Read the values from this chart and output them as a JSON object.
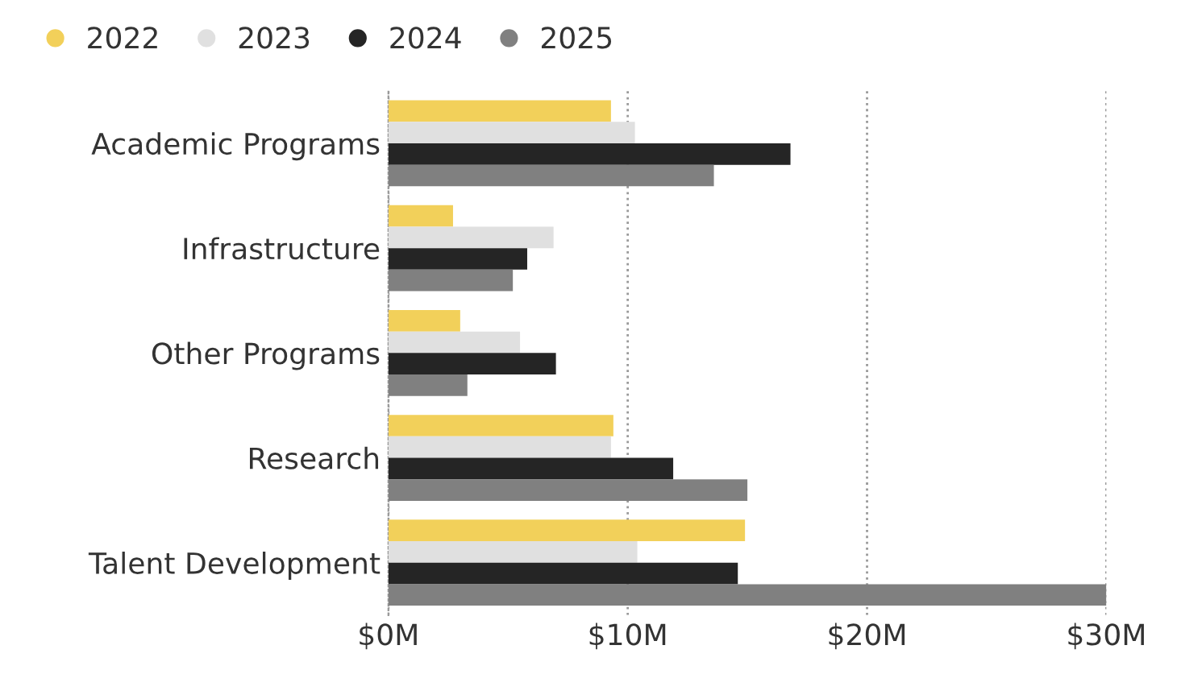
{
  "chart_data": {
    "type": "bar",
    "orientation": "horizontal",
    "categories": [
      "Academic Programs",
      "Infrastructure",
      "Other Programs",
      "Research",
      "Talent Development"
    ],
    "series": [
      {
        "name": "2022",
        "color": "#f2d05a",
        "values": [
          9.3,
          2.7,
          3.0,
          9.4,
          14.9
        ]
      },
      {
        "name": "2023",
        "color": "#e0e0e0",
        "values": [
          10.3,
          6.9,
          5.5,
          9.3,
          10.4
        ]
      },
      {
        "name": "2024",
        "color": "#252525",
        "values": [
          16.8,
          5.8,
          7.0,
          11.9,
          14.6
        ]
      },
      {
        "name": "2025",
        "color": "#808080",
        "values": [
          13.6,
          5.2,
          3.3,
          15.0,
          30.0
        ]
      }
    ],
    "xlim": [
      0,
      30
    ],
    "xticks": [
      {
        "value": 0,
        "label": "$0M"
      },
      {
        "value": 10,
        "label": "$10M"
      },
      {
        "value": 20,
        "label": "$20M"
      },
      {
        "value": 30,
        "label": "$30M"
      }
    ],
    "grid": "x",
    "legend": "top left",
    "marker": "circle"
  }
}
